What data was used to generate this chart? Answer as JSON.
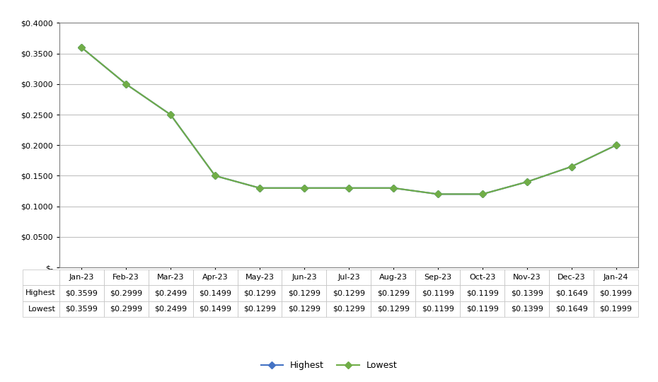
{
  "months": [
    "Jan-23",
    "Feb-23",
    "Mar-23",
    "Apr-23",
    "May-23",
    "Jun-23",
    "Jul-23",
    "Aug-23",
    "Sep-23",
    "Oct-23",
    "Nov-23",
    "Dec-23",
    "Jan-24"
  ],
  "highest": [
    0.3599,
    0.2999,
    0.2499,
    0.1499,
    0.1299,
    0.1299,
    0.1299,
    0.1299,
    0.1199,
    0.1199,
    0.1399,
    0.1649,
    0.1999
  ],
  "lowest": [
    0.3599,
    0.2999,
    0.2499,
    0.1499,
    0.1299,
    0.1299,
    0.1299,
    0.1299,
    0.1199,
    0.1199,
    0.1399,
    0.1649,
    0.1999
  ],
  "highest_color": "#4472C4",
  "lowest_color": "#70AD47",
  "marker": "D",
  "ylim_min": 0,
  "ylim_max": 0.4,
  "ytick_step": 0.05,
  "bg_color": "#FFFFFF",
  "grid_color": "#C0C0C0",
  "axis_color": "#808080",
  "font_size": 8,
  "line_width": 1.5,
  "marker_size": 5
}
